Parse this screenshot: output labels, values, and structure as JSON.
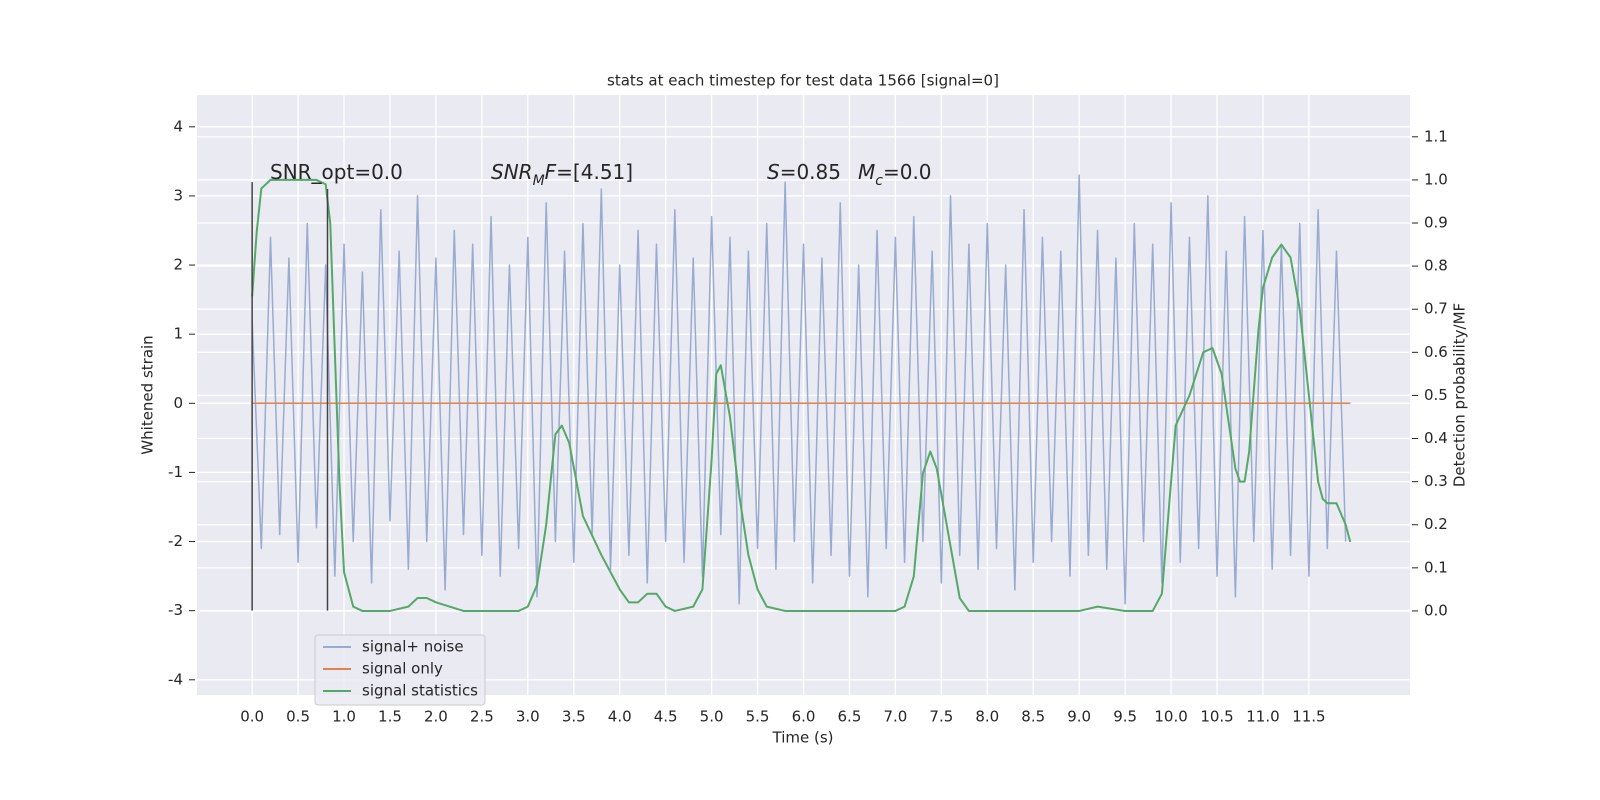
{
  "chart_data": {
    "type": "line",
    "title": "stats at each timestep for test data 1566 [signal=0]",
    "xlabel": "Time (s)",
    "ylabel": "Whitened strain",
    "y2label": "Detection probability/MF",
    "xlim": [
      -0.6,
      12.6
    ],
    "ylim": [
      -4.22,
      4.46
    ],
    "y2lim": [
      -0.195,
      1.197
    ],
    "xticks": [
      {
        "value": 0,
        "label": "0.0"
      },
      0.5,
      {
        "value": 1,
        "label": "1.0"
      },
      1.5,
      {
        "value": 2,
        "label": "2.0"
      },
      2.5,
      {
        "value": 3,
        "label": "3.0"
      },
      3.5,
      {
        "value": 4,
        "label": "4.0"
      },
      4.5,
      {
        "value": 5,
        "label": "5.0"
      },
      5.5,
      {
        "value": 6,
        "label": "6.0"
      },
      6.5,
      {
        "value": 7,
        "label": "7.0"
      },
      7.5,
      {
        "value": 8,
        "label": "8.0"
      },
      8.5,
      {
        "value": 9,
        "label": "9.0"
      },
      9.5,
      {
        "value": 10,
        "label": "10.0"
      },
      10.5,
      {
        "value": 11,
        "label": "11.0"
      },
      11.5
    ],
    "yticks": [
      -4,
      -3,
      -2,
      -1,
      0,
      1,
      2,
      3,
      4
    ],
    "y2ticks": [
      {
        "value": 0,
        "label": "0.0"
      },
      0.1,
      0.2,
      0.3,
      0.4,
      0.5,
      0.6,
      0.7,
      0.8,
      0.9,
      {
        "value": 1,
        "label": "1.0"
      },
      1.1
    ],
    "grid": true,
    "legend": "lower left",
    "series": [
      {
        "name": "signal+ noise",
        "color": "#99abd1",
        "x": [
          0.0,
          0.1,
          0.2,
          0.3,
          0.4,
          0.5,
          0.6,
          0.7,
          0.8,
          0.9,
          1.0,
          1.1,
          1.2,
          1.3,
          1.4,
          1.5,
          1.6,
          1.7,
          1.8,
          1.9,
          2.0,
          2.1,
          2.2,
          2.3,
          2.4,
          2.5,
          2.6,
          2.7,
          2.8,
          2.9,
          3.0,
          3.1,
          3.2,
          3.3,
          3.4,
          3.5,
          3.6,
          3.7,
          3.8,
          3.9,
          4.0,
          4.1,
          4.2,
          4.3,
          4.4,
          4.5,
          4.6,
          4.7,
          4.8,
          4.9,
          5.0,
          5.1,
          5.2,
          5.3,
          5.4,
          5.5,
          5.6,
          5.7,
          5.8,
          5.9,
          6.0,
          6.1,
          6.2,
          6.3,
          6.4,
          6.5,
          6.6,
          6.7,
          6.8,
          6.9,
          7.0,
          7.1,
          7.2,
          7.3,
          7.4,
          7.5,
          7.6,
          7.7,
          7.8,
          7.9,
          8.0,
          8.1,
          8.2,
          8.3,
          8.4,
          8.5,
          8.6,
          8.7,
          8.8,
          8.9,
          9.0,
          9.1,
          9.2,
          9.3,
          9.4,
          9.5,
          9.6,
          9.7,
          9.8,
          9.9,
          10.0,
          10.1,
          10.2,
          10.3,
          10.4,
          10.5,
          10.6,
          10.7,
          10.8,
          10.9,
          11.0,
          11.1,
          11.2,
          11.3,
          11.4,
          11.5,
          11.6,
          11.7,
          11.8,
          11.9
        ],
        "values": [
          1.2,
          -2.1,
          2.4,
          -1.9,
          2.1,
          -2.3,
          2.6,
          -1.8,
          2.0,
          -2.5,
          2.3,
          -2.0,
          1.9,
          -2.6,
          2.8,
          -1.7,
          2.2,
          -2.4,
          3.0,
          -2.0,
          2.1,
          -2.7,
          2.5,
          -1.9,
          2.3,
          -2.2,
          2.7,
          -2.5,
          2.0,
          -2.1,
          2.4,
          -2.8,
          2.9,
          -2.0,
          2.2,
          -2.3,
          2.6,
          -1.9,
          3.1,
          -2.4,
          2.0,
          -2.2,
          2.5,
          -2.6,
          2.3,
          -2.0,
          2.8,
          -2.3,
          2.1,
          -2.5,
          2.7,
          -1.9,
          2.4,
          -2.9,
          2.2,
          -2.1,
          2.6,
          -2.4,
          3.2,
          -2.0,
          2.3,
          -2.6,
          2.1,
          -2.2,
          2.9,
          -2.5,
          2.0,
          -2.8,
          2.5,
          -2.1,
          2.4,
          -2.3,
          2.7,
          -2.0,
          2.2,
          -2.6,
          3.0,
          -2.2,
          2.3,
          -2.4,
          2.6,
          -2.1,
          2.0,
          -2.7,
          2.8,
          -2.3,
          2.4,
          -2.0,
          2.2,
          -2.5,
          3.3,
          -2.2,
          2.5,
          -2.4,
          2.1,
          -2.9,
          2.6,
          -2.0,
          2.3,
          -2.6,
          2.9,
          -2.3,
          2.4,
          -2.1,
          3.0,
          -2.5,
          2.2,
          -2.8,
          2.7,
          -2.0,
          2.5,
          -2.4,
          2.3,
          -2.2,
          2.6,
          -2.5,
          2.8,
          -2.1,
          2.2,
          -2.0
        ]
      },
      {
        "name": "signal only",
        "color": "#dd8452",
        "x": [
          0.0,
          11.95
        ],
        "values": [
          0,
          0
        ]
      },
      {
        "name": "signal statistics",
        "color": "#55a868",
        "axis": "y2",
        "x": [
          0,
          0.05,
          0.1,
          0.2,
          0.3,
          0.5,
          0.7,
          0.8,
          0.85,
          0.9,
          0.95,
          1.0,
          1.1,
          1.2,
          1.5,
          1.7,
          1.8,
          1.9,
          2.0,
          2.3,
          2.6,
          2.9,
          3.0,
          3.1,
          3.2,
          3.3,
          3.37,
          3.45,
          3.6,
          3.8,
          4.0,
          4.1,
          4.2,
          4.3,
          4.4,
          4.5,
          4.6,
          4.8,
          4.9,
          5.0,
          5.05,
          5.1,
          5.2,
          5.3,
          5.4,
          5.5,
          5.6,
          5.8,
          6.5,
          7.0,
          7.1,
          7.2,
          7.3,
          7.38,
          7.45,
          7.6,
          7.7,
          7.8,
          8.3,
          9.0,
          9.2,
          9.5,
          9.8,
          9.9,
          10.0,
          10.05,
          10.2,
          10.35,
          10.45,
          10.55,
          10.7,
          10.75,
          10.8,
          10.85,
          10.95,
          11.0,
          11.1,
          11.2,
          11.3,
          11.4,
          11.5,
          11.6,
          11.65,
          11.7,
          11.8,
          11.9,
          11.95
        ],
        "values": [
          0.73,
          0.88,
          0.98,
          1.0,
          1.0,
          1.0,
          1.0,
          0.99,
          0.9,
          0.6,
          0.3,
          0.09,
          0.01,
          0.0,
          0.0,
          0.01,
          0.03,
          0.03,
          0.02,
          0.0,
          0.0,
          0.0,
          0.01,
          0.06,
          0.2,
          0.41,
          0.43,
          0.39,
          0.22,
          0.13,
          0.05,
          0.02,
          0.02,
          0.04,
          0.04,
          0.01,
          0.0,
          0.01,
          0.05,
          0.35,
          0.55,
          0.57,
          0.45,
          0.27,
          0.13,
          0.05,
          0.01,
          0.0,
          0.0,
          0.0,
          0.01,
          0.08,
          0.32,
          0.37,
          0.33,
          0.15,
          0.03,
          0.0,
          0.0,
          0.0,
          0.01,
          0.0,
          0.0,
          0.04,
          0.3,
          0.43,
          0.5,
          0.6,
          0.61,
          0.55,
          0.33,
          0.3,
          0.3,
          0.37,
          0.65,
          0.75,
          0.82,
          0.85,
          0.82,
          0.7,
          0.5,
          0.3,
          0.26,
          0.25,
          0.25,
          0.2,
          0.16
        ]
      }
    ],
    "vlines": [
      {
        "x": 0,
        "ymin": -3,
        "ymax": 3.2
      },
      {
        "x": 0.82,
        "ymin": -3,
        "ymax": 3.1
      }
    ],
    "annotations": [
      [
        {
          "text": "SNR_opt=0.0"
        }
      ],
      [
        {
          "text": "SNR",
          "style": "italic"
        },
        {
          "text": "M",
          "style": "sub"
        },
        {
          "text": "F",
          "style": "italic"
        },
        {
          "text": "=[4.51]"
        }
      ],
      [
        {
          "text": "S",
          "style": "italic"
        },
        {
          "text": "=0.85"
        }
      ],
      [
        {
          "text": "M",
          "style": "italic"
        },
        {
          "text": "c",
          "style": "sub"
        },
        {
          "text": "=0.0"
        }
      ]
    ]
  }
}
